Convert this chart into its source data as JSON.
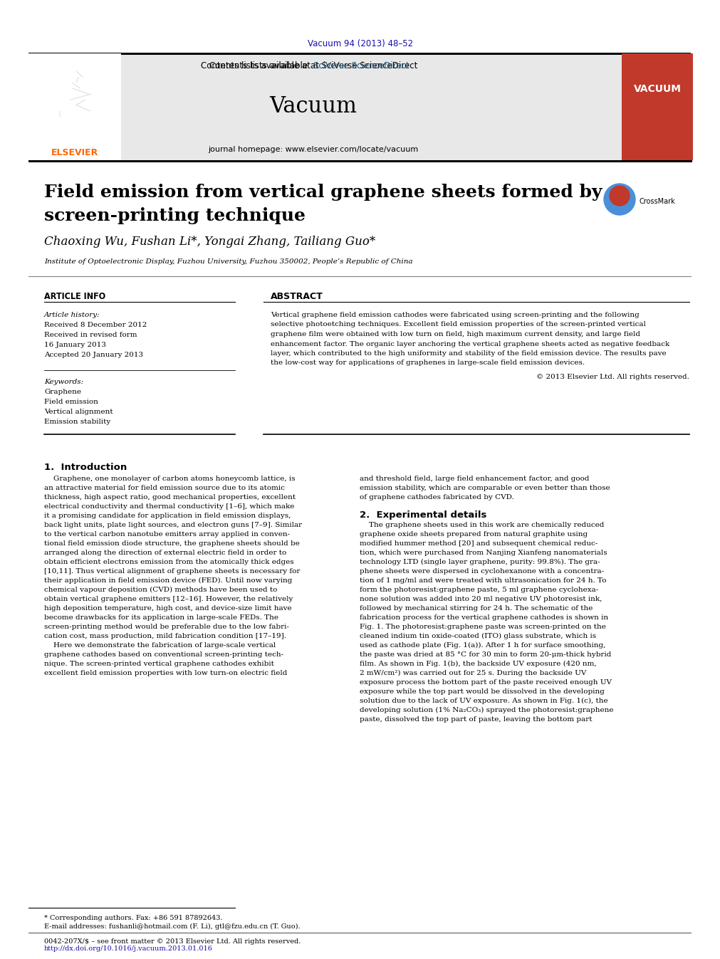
{
  "bg_color": "#ffffff",
  "page_width": 9.92,
  "page_height": 13.23,
  "header_doi": "Vacuum 94 (2013) 48–52",
  "journal_name": "Vacuum",
  "journal_homepage": "journal homepage: www.elsevier.com/locate/vacuum",
  "contents_text": "Contents lists available at SciVerse ScienceDirect",
  "article_title_line1": "Field emission from vertical graphene sheets formed by",
  "article_title_line2": "screen-printing technique",
  "authors": "Chaoxing Wu, Fushan Li*, Yongai Zhang, Tailiang Guo*",
  "affiliation": "Institute of Optoelectronic Display, Fuzhou University, Fuzhou 350002, People’s Republic of China",
  "article_info_header": "ARTICLE INFO",
  "abstract_header": "ABSTRACT",
  "article_history_label": "Article history:",
  "received_1": "Received 8 December 2012",
  "received_2": "Received in revised form",
  "received_2b": "16 January 2013",
  "accepted": "Accepted 20 January 2013",
  "keywords_label": "Keywords:",
  "keywords": [
    "Graphene",
    "Field emission",
    "Vertical alignment",
    "Emission stability"
  ],
  "abstract_text": "Vertical graphene field emission cathodes were fabricated using screen-printing and the following selective photoetching techniques. Excellent field emission properties of the screen-printed vertical graphene film were obtained with low turn on field, high maximum current density, and large field enhancement factor. The organic layer anchoring the vertical graphene sheets acted as negative feedback layer, which contributed to the high uniformity and stability of the field emission device. The results pave the low-cost way for applications of graphenes in large-scale field emission devices.",
  "copyright": "© 2013 Elsevier Ltd. All rights reserved.",
  "section1_title": "1.  Introduction",
  "section1_col1": "    Graphene, one monolayer of carbon atoms honeycomb lattice, is an attractive material for field emission source due to its atomic thickness, high aspect ratio, good mechanical properties, excellent electrical conductivity and thermal conductivity [1–6], which make it a promising candidate for application in field emission displays, back light units, plate light sources, and electron guns [7–9]. Similar to the vertical carbon nanotube emitters array applied in conventional field emission diode structure, the graphene sheets should be arranged along the direction of external electric field in order to obtain efficient electrons emission from the atomically thick edges [10,11]. Thus vertical alignment of graphene sheets is necessary for their application in field emission device (FED). Until now varying chemical vapour deposition (CVD) methods have been used to obtain vertical graphene emitters [12–16]. However, the relatively high deposition temperature, high cost, and device-size limit have become drawbacks for its application in large-scale FEDs. The screen-printing method would be preferable due to the low fabrication cost, mass production, mild fabrication condition [17–19].\n    Here we demonstrate the fabrication of large-scale vertical graphene cathodes based on conventional screen-printing technique. The screen-printed vertical graphene cathodes exhibit excellent field emission properties with low turn-on electric field",
  "section1_col2": "and threshold field, large field enhancement factor, and good emission stability, which are comparable or even better than those of graphene cathodes fabricated by CVD.",
  "section2_title": "2.  Experimental details",
  "section2_col2": "    The graphene sheets used in this work are chemically reduced graphene oxide sheets prepared from natural graphite using modified hummer method [20] and subsequent chemical reduction, which were purchased from Nanjing Xianfeng nanomaterials technology LTD (single layer graphene, purity: 99.8%). The graphene sheets were dispersed in cyclohexanone with a concentration of 1 mg/ml and were treated with ultrasonication for 24 h. To form the photoresist:graphene paste, 5 ml graphene cyclohexanone solution was added into 20 ml negative UV photoresist ink, followed by mechanical stirring for 24 h. The schematic of the fabrication process for the vertical graphene cathodes is shown in Fig. 1. The photoresist:graphene paste was screen-printed on the cleaned indium tin oxide-coated (ITO) glass substrate, which is used as cathode plate (Fig. 1(a)). After 1 h for surface smoothing, the paste was dried at 85 °C for 30 min to form 20-μm-thick hybrid film. As shown in Fig. 1(b), the backside UV exposure (420 nm, 2 mW/cm²) was carried out for 25 s. During the backside UV exposure process the bottom part of the paste received enough UV exposure while the top part would be dissolved in the developing solution due to the lack of UV exposure. As shown in Fig. 1(c), the developing solution (1% Na₂CO₃) sprayed the photoresist:graphene paste, dissolved the top part of paste, leaving the bottom part",
  "footnote_star": "* Corresponding authors. Fax: +86 591 87892643.",
  "footnote_email": "E-mail addresses: fushanli@hotmail.com (F. Li), gtl@fzu.edu.cn (T. Guo).",
  "footer_issn": "0042-207X/$ – see front matter © 2013 Elsevier Ltd. All rights reserved.",
  "footer_doi": "http://dx.doi.org/10.1016/j.vacuum.2013.01.016",
  "elsevier_color": "#FF6600",
  "doi_color": "#1a0dab",
  "sciverse_color": "#1a5276",
  "link_color": "#1a0dab",
  "header_bg": "#e8e8e8",
  "vacuum_bg": "#c0392b"
}
